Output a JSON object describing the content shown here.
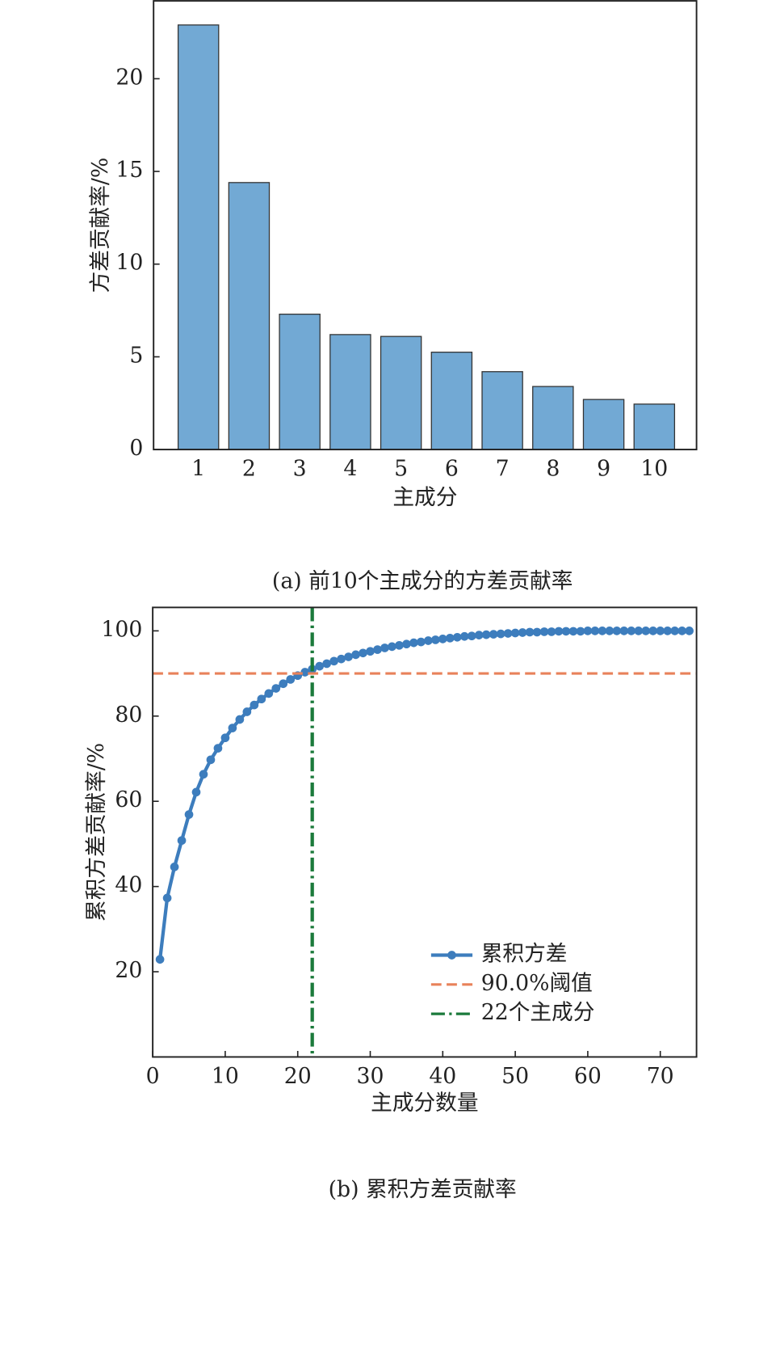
{
  "chart_data": [
    {
      "type": "bar",
      "caption": "(a) 前10个主成分的方差贡献率",
      "xlabel": "主成分",
      "ylabel": "方差贡献率/%",
      "categories": [
        "1",
        "2",
        "3",
        "4",
        "5",
        "6",
        "7",
        "8",
        "9",
        "10"
      ],
      "values": [
        22.9,
        14.4,
        7.3,
        6.2,
        6.1,
        5.25,
        4.2,
        3.4,
        2.7,
        2.45
      ],
      "color": "#72a9d4",
      "ylim": [
        0,
        24.2
      ],
      "yticks": [
        0,
        5,
        10,
        15,
        20
      ],
      "grid": false
    },
    {
      "type": "line",
      "caption": "(b) 累积方差贡献率",
      "xlabel": "主成分数量",
      "ylabel": "累积方差贡献率/%",
      "x": [
        1,
        2,
        3,
        4,
        5,
        6,
        7,
        8,
        9,
        10,
        11,
        12,
        13,
        14,
        15,
        16,
        17,
        18,
        19,
        20,
        21,
        22,
        23,
        24,
        25,
        26,
        27,
        28,
        29,
        30,
        31,
        32,
        33,
        34,
        35,
        36,
        37,
        38,
        39,
        40,
        41,
        42,
        43,
        44,
        45,
        46,
        47,
        48,
        49,
        50,
        51,
        52,
        53,
        54,
        55,
        56,
        57,
        58,
        59,
        60,
        61,
        62,
        63,
        64,
        65,
        66,
        67,
        68,
        69,
        70,
        71,
        72,
        73,
        74
      ],
      "series": [
        {
          "name": "累积方差",
          "color": "#3d7dbd",
          "values": [
            22.9,
            37.3,
            44.6,
            50.8,
            56.9,
            62.15,
            66.35,
            69.75,
            72.45,
            74.9,
            77.2,
            79.2,
            81.0,
            82.6,
            84.0,
            85.3,
            86.5,
            87.6,
            88.6,
            89.5,
            90.3,
            91.0,
            91.7,
            92.3,
            92.9,
            93.4,
            93.9,
            94.4,
            94.8,
            95.2,
            95.6,
            96.0,
            96.3,
            96.6,
            96.9,
            97.2,
            97.4,
            97.7,
            97.9,
            98.1,
            98.3,
            98.5,
            98.7,
            98.8,
            99.0,
            99.1,
            99.2,
            99.3,
            99.4,
            99.5,
            99.6,
            99.7,
            99.7,
            99.8,
            99.8,
            99.9,
            99.9,
            99.9,
            99.9,
            100,
            100,
            100,
            100,
            100,
            100,
            100,
            100,
            100,
            100,
            100,
            100,
            100,
            100,
            100
          ]
        }
      ],
      "reference_lines": [
        {
          "name": "90.0%阈值",
          "axis": "y",
          "value": 90,
          "color": "#e8825a",
          "style": "dashed"
        },
        {
          "name": "22个主成分",
          "axis": "x",
          "value": 22,
          "color": "#1b7a3b",
          "style": "dashdot"
        }
      ],
      "xlim": [
        0,
        75
      ],
      "xticks": [
        0,
        10,
        20,
        30,
        40,
        50,
        60,
        70
      ],
      "ylim": [
        0,
        105.5
      ],
      "yticks": [
        20,
        40,
        60,
        80,
        100
      ],
      "grid": false,
      "legend": "lower right"
    }
  ]
}
